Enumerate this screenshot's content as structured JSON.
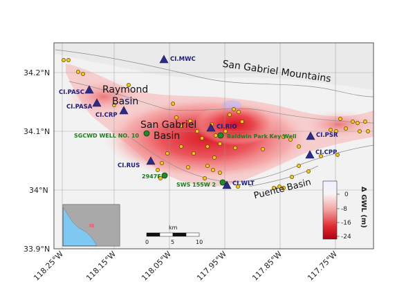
{
  "map": {
    "lat_ticks": [
      "34.2°N",
      "34.1°N",
      "34°N",
      "33.9°N"
    ],
    "lon_ticks": [
      "118.25°W",
      "118.15°W",
      "118.05°W",
      "117.95°W",
      "117.85°W",
      "117.75°W"
    ],
    "regions": {
      "mountains": "San Gabriel Mountains",
      "raymond_line1": "Raymond",
      "raymond_line2": "Basin",
      "sgb_line1": "San Gabriel",
      "sgb_line2": "Basin",
      "puente": "Puente Basin"
    },
    "stations": [
      {
        "id": "CI.MWC",
        "label": "CI.MWC"
      },
      {
        "id": "CI.PASC",
        "label": "CI.PASC"
      },
      {
        "id": "CI.PASA",
        "label": "CI.PASA"
      },
      {
        "id": "CI.CRP",
        "label": "CI.CRP"
      },
      {
        "id": "CI.RIO",
        "label": "CI.RIO"
      },
      {
        "id": "CI.PSR",
        "label": "CI.PSR"
      },
      {
        "id": "CI.CPP",
        "label": "CI.CPP"
      },
      {
        "id": "CI.RUS",
        "label": "CI.RUS"
      },
      {
        "id": "CI.WLT",
        "label": "CI.WLT"
      }
    ],
    "wells": [
      {
        "id": "sgcwd",
        "label": "SGCWD WELL NO. 10"
      },
      {
        "id": "baldwin",
        "label": "Baldwin Park Key Well"
      },
      {
        "id": "2947f",
        "label": "2947F"
      },
      {
        "id": "sws",
        "label": "SWS 155W 2"
      }
    ],
    "colorbar": {
      "label": "Δ GWL (m)",
      "ticks": [
        "0",
        "-8",
        "-16",
        "-24"
      ],
      "colors": {
        "top": "#f4f4ff",
        "mid": "#f08080",
        "bottom": "#b00010"
      }
    },
    "scalebar": {
      "unit": "km",
      "ticks": [
        "0",
        "5",
        "10"
      ]
    },
    "inset": {
      "land_color": "#a9a9a9",
      "water_color": "#7ec8f2",
      "marker_color": "#e8707a"
    }
  }
}
